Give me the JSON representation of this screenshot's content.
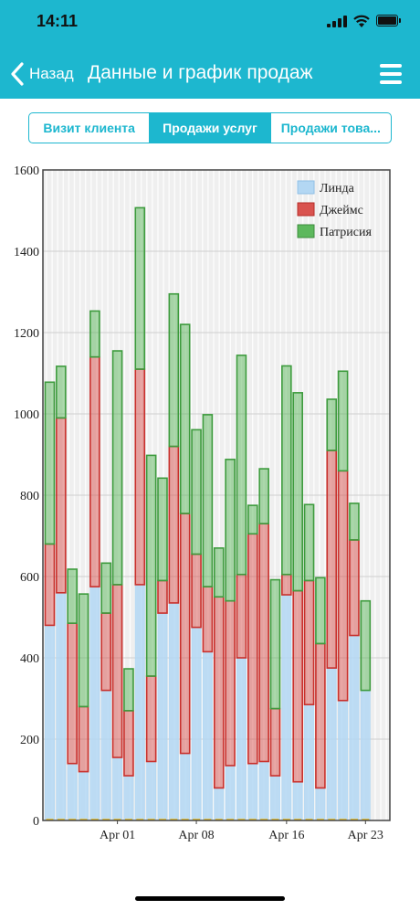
{
  "status": {
    "time": "14:11"
  },
  "nav": {
    "back_label": "Назад",
    "title": "Данные и график продаж"
  },
  "tabs": [
    {
      "label": "Визит клиента",
      "active": false
    },
    {
      "label": "Продажи услуг",
      "active": true
    },
    {
      "label": "Продажи това...",
      "active": false
    }
  ],
  "colors": {
    "header": "#1db7cf",
    "linda": "#b3d7f3",
    "james": "#d9534f",
    "patricia": "#5cb85c"
  },
  "chart_data": {
    "type": "bar",
    "stacked": true,
    "ylim": [
      0,
      1600
    ],
    "yticks": [
      0,
      200,
      400,
      600,
      800,
      1000,
      1200,
      1400,
      1600
    ],
    "xtick_labels": [
      {
        "label": "Apr 01",
        "index": 7
      },
      {
        "label": "Apr 08",
        "index": 14
      },
      {
        "label": "Apr 16",
        "index": 22
      },
      {
        "label": "Apr 23",
        "index": 29
      }
    ],
    "grid": true,
    "legend_position": "top-right",
    "series": [
      {
        "name": "Линда",
        "color": "#b3d7f3",
        "values": [
          480,
          560,
          140,
          120,
          575,
          320,
          155,
          110,
          580,
          145,
          510,
          535,
          165,
          475,
          415,
          80,
          135,
          400,
          140,
          145,
          110,
          555,
          95,
          285,
          80,
          375,
          295,
          455,
          320
        ]
      },
      {
        "name": "Джеймс",
        "color": "#d9534f",
        "values": [
          200,
          430,
          345,
          160,
          565,
          190,
          425,
          160,
          530,
          210,
          80,
          385,
          590,
          180,
          160,
          470,
          405,
          205,
          565,
          585,
          165,
          50,
          470,
          305,
          355,
          535,
          565,
          235,
          0
        ]
      },
      {
        "name": "Патрисия",
        "color": "#5cb85c",
        "values": [
          398,
          127,
          133,
          277,
          113,
          123,
          575,
          103,
          397,
          543,
          252,
          375,
          465,
          306,
          423,
          120,
          348,
          539,
          70,
          135,
          317,
          513,
          487,
          187,
          162,
          126,
          245,
          90,
          220
        ]
      }
    ]
  }
}
